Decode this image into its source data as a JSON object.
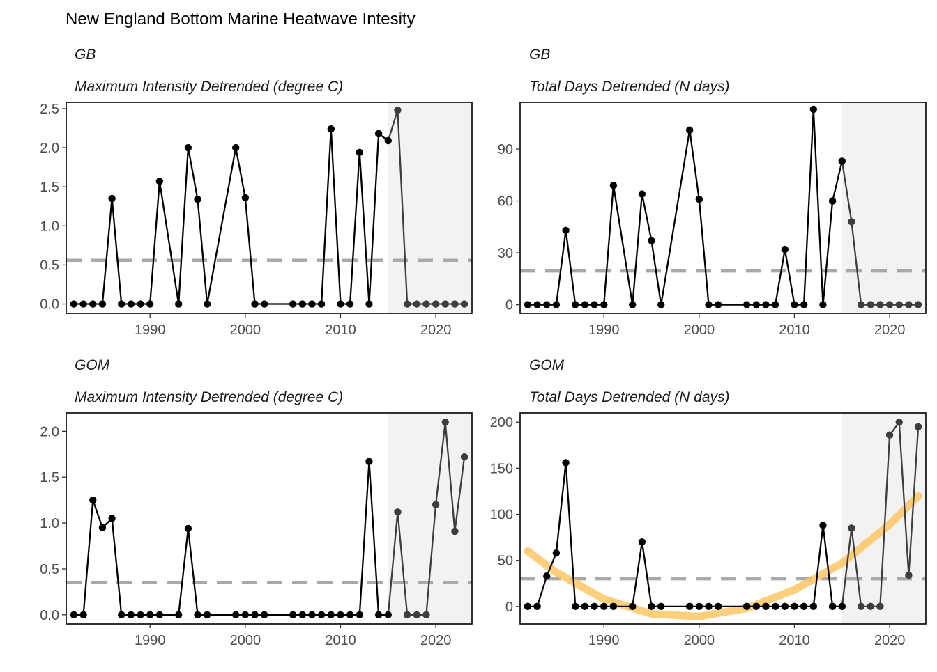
{
  "page": {
    "title": "New England Bottom Marine Heatwave Intesity"
  },
  "style": {
    "line_color": "#000000",
    "recent_line_color": "#3d3d3d",
    "mean_line_color": "#a9a9a9",
    "shade_color": "#f2f2f2",
    "trend_color": "#fcc35c"
  },
  "chart_data": [
    {
      "type": "line",
      "region": "GB",
      "subtitle": "Maximum Intensity Detrended (degree C)",
      "xlim": [
        1981.2,
        2023.8
      ],
      "ylim": [
        -0.12,
        2.58
      ],
      "yticks": [
        0.0,
        0.5,
        1.0,
        1.5,
        2.0,
        2.5
      ],
      "ytick_labels": [
        "0.0",
        "0.5",
        "1.0",
        "1.5",
        "2.0",
        "2.5"
      ],
      "xticks": [
        1990,
        2000,
        2010,
        2020
      ],
      "xtick_labels": [
        "1990",
        "2000",
        "2010",
        "2020"
      ],
      "shade_start": 2015,
      "mean": 0.56,
      "x": [
        1982,
        1983,
        1984,
        1985,
        1986,
        1987,
        1988,
        1989,
        1990,
        1991,
        1993,
        1994,
        1995,
        1996,
        1999,
        2000,
        2001,
        2002,
        2005,
        2006,
        2007,
        2008,
        2009,
        2010,
        2011,
        2012,
        2013,
        2014,
        2015,
        2016,
        2017,
        2018,
        2019,
        2020,
        2021,
        2022,
        2023
      ],
      "y": [
        0,
        0,
        0,
        0,
        1.35,
        0,
        0,
        0,
        0,
        1.57,
        0,
        2.0,
        1.34,
        0,
        2.0,
        1.36,
        0,
        0,
        0,
        0,
        0,
        0,
        2.24,
        0,
        0,
        1.94,
        0,
        2.18,
        2.09,
        2.48,
        0,
        0,
        0,
        0,
        0,
        0,
        0
      ],
      "trend": null
    },
    {
      "type": "line",
      "region": "GB",
      "subtitle": "Total Days Detrended (N days)",
      "xlim": [
        1981.2,
        2023.8
      ],
      "ylim": [
        -5,
        117
      ],
      "yticks": [
        0,
        30,
        60,
        90
      ],
      "ytick_labels": [
        "0",
        "30",
        "60",
        "90"
      ],
      "xticks": [
        1990,
        2000,
        2010,
        2020
      ],
      "xtick_labels": [
        "1990",
        "2000",
        "2010",
        "2020"
      ],
      "shade_start": 2015,
      "mean": 19.5,
      "x": [
        1982,
        1983,
        1984,
        1985,
        1986,
        1987,
        1988,
        1989,
        1990,
        1991,
        1993,
        1994,
        1995,
        1996,
        1999,
        2000,
        2001,
        2002,
        2005,
        2006,
        2007,
        2008,
        2009,
        2010,
        2011,
        2012,
        2013,
        2014,
        2015,
        2016,
        2017,
        2018,
        2019,
        2020,
        2021,
        2022,
        2023
      ],
      "y": [
        0,
        0,
        0,
        0,
        43,
        0,
        0,
        0,
        0,
        69,
        0,
        64,
        37,
        0,
        101,
        61,
        0,
        0,
        0,
        0,
        0,
        0,
        32,
        0,
        0,
        113,
        0,
        60,
        83,
        48,
        0,
        0,
        0,
        0,
        0,
        0,
        0
      ],
      "trend": null
    },
    {
      "type": "line",
      "region": "GOM",
      "subtitle": "Maximum Intensity Detrended (degree C)",
      "xlim": [
        1981.2,
        2023.8
      ],
      "ylim": [
        -0.1,
        2.2
      ],
      "yticks": [
        0.0,
        0.5,
        1.0,
        1.5,
        2.0
      ],
      "ytick_labels": [
        "0.0",
        "0.5",
        "1.0",
        "1.5",
        "2.0"
      ],
      "xticks": [
        1990,
        2000,
        2010,
        2020
      ],
      "xtick_labels": [
        "1990",
        "2000",
        "2010",
        "2020"
      ],
      "shade_start": 2015,
      "mean": 0.35,
      "x": [
        1982,
        1983,
        1984,
        1985,
        1986,
        1987,
        1988,
        1989,
        1990,
        1991,
        1993,
        1994,
        1995,
        1996,
        1999,
        2000,
        2001,
        2002,
        2005,
        2006,
        2007,
        2008,
        2009,
        2010,
        2011,
        2012,
        2013,
        2014,
        2015,
        2016,
        2017,
        2018,
        2019,
        2020,
        2021,
        2022,
        2023
      ],
      "y": [
        0,
        0,
        1.25,
        0.95,
        1.05,
        0,
        0,
        0,
        0,
        0,
        0,
        0.94,
        0,
        0,
        0,
        0,
        0,
        0,
        0,
        0,
        0,
        0,
        0,
        0,
        0,
        0,
        1.67,
        0,
        0,
        1.12,
        0,
        0,
        0,
        1.2,
        2.1,
        0.91,
        1.72
      ],
      "trend": null
    },
    {
      "type": "line",
      "region": "GOM",
      "subtitle": "Total Days Detrended (N days)",
      "xlim": [
        1981.2,
        2023.8
      ],
      "ylim": [
        -19,
        210
      ],
      "yticks": [
        0,
        50,
        100,
        150,
        200
      ],
      "ytick_labels": [
        "0",
        "50",
        "100",
        "150",
        "200"
      ],
      "xticks": [
        1990,
        2000,
        2010,
        2020
      ],
      "xtick_labels": [
        "1990",
        "2000",
        "2010",
        "2020"
      ],
      "shade_start": 2015,
      "mean": 30,
      "x": [
        1982,
        1983,
        1984,
        1985,
        1986,
        1987,
        1988,
        1989,
        1990,
        1991,
        1993,
        1994,
        1995,
        1996,
        1999,
        2000,
        2001,
        2002,
        2005,
        2006,
        2007,
        2008,
        2009,
        2010,
        2011,
        2012,
        2013,
        2014,
        2015,
        2016,
        2017,
        2018,
        2019,
        2020,
        2021,
        2022,
        2023
      ],
      "y": [
        0,
        0,
        33,
        58,
        156,
        0,
        0,
        0,
        0,
        0,
        0,
        70,
        0,
        0,
        0,
        0,
        0,
        0,
        0,
        0,
        0,
        0,
        0,
        0,
        0,
        0,
        88,
        0,
        0,
        85,
        0,
        0,
        0,
        186,
        200,
        34,
        195
      ],
      "trend": {
        "x": [
          1982,
          1985,
          1990,
          1995,
          2000,
          2005,
          2010,
          2015,
          2020,
          2023
        ],
        "y": [
          60,
          37,
          8,
          -8,
          -11,
          -2,
          18,
          47,
          89,
          120
        ]
      }
    }
  ]
}
